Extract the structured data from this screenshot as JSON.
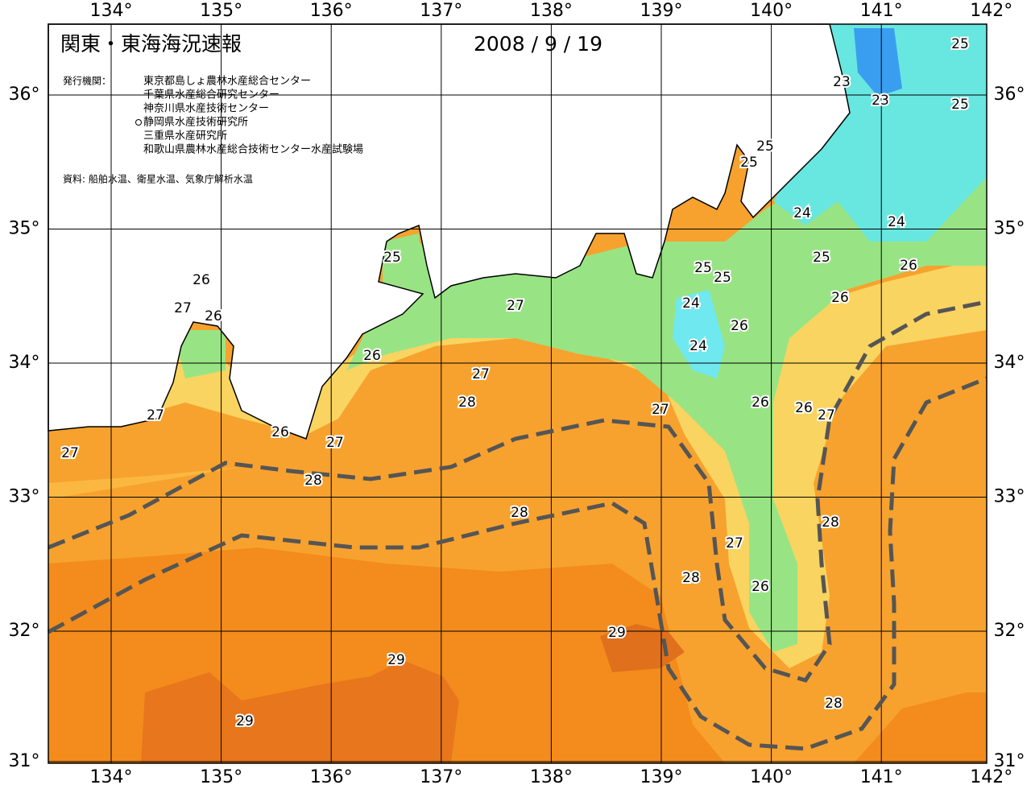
{
  "header": {
    "title": "関東・東海海況速報",
    "date": "2008 / 9 / 19",
    "issuer_label": "発行機関：",
    "issuers": [
      "東京都島しょ農林水産総合センター",
      "千葉県水産総合研究センター",
      "神奈川県水産技術センター",
      "静岡県水産技術研究所",
      "三重県水産研究所",
      "和歌山県農林水産総合技術センター水産試験場"
    ],
    "source": "資料: 船舶水温、衛星水温、気象庁解析水温"
  },
  "map": {
    "lon_labels": [
      "134°",
      "135°",
      "136°",
      "137°",
      "138°",
      "139°",
      "140°",
      "141°",
      "142°"
    ],
    "lat_labels": [
      "36°",
      "35°",
      "34°",
      "33°",
      "32°",
      "31°"
    ],
    "contour_labels": [
      25,
      25,
      23,
      23,
      25,
      25,
      24,
      24,
      25,
      26,
      25,
      25,
      26,
      24,
      26,
      24,
      25,
      26,
      27,
      26,
      27,
      26,
      27,
      28,
      27,
      26,
      27,
      27,
      27,
      26,
      26,
      27,
      28,
      28,
      28,
      27,
      28,
      26,
      29,
      29,
      28,
      29
    ]
  }
}
